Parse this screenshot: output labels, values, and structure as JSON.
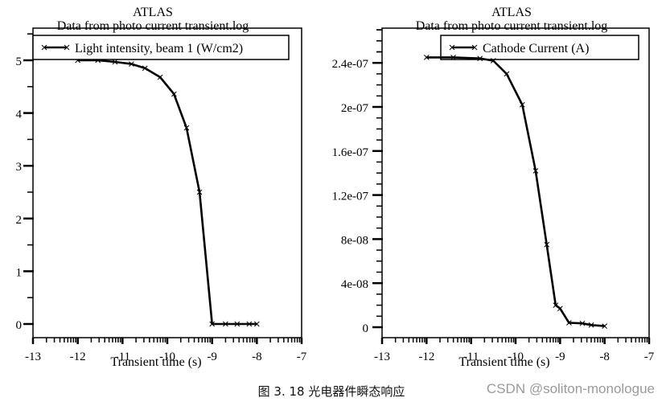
{
  "chart_data": [
    {
      "type": "line",
      "title": "ATLAS",
      "subtitle": "Data from photo current transient.log",
      "xlabel": "Transient time (s)",
      "ylabel": "",
      "xlim": [
        -13,
        -7
      ],
      "ylim": [
        -0.3,
        5.5
      ],
      "x_scale": "log10",
      "xticks": [
        "-13",
        "-12",
        "-11",
        "-10",
        "-9",
        "-8",
        "-7"
      ],
      "yticks": [
        "0",
        "1",
        "2",
        "3",
        "4",
        "5"
      ],
      "legend": [
        "Light intensity, beam 1 (W/cm2)"
      ],
      "legend_position": "top",
      "grid": false,
      "series": [
        {
          "name": "Light intensity, beam 1 (W/cm2)",
          "x": [
            -12.0,
            -11.55,
            -11.17,
            -10.8,
            -10.5,
            -10.16,
            -9.85,
            -9.57,
            -9.28,
            -9.0,
            -8.7,
            -8.44,
            -8.17,
            -8.0
          ],
          "values": [
            5.0,
            5.0,
            4.97,
            4.93,
            4.85,
            4.68,
            4.36,
            3.72,
            2.5,
            0.0,
            0.0,
            0.0,
            0.0,
            0.0
          ]
        }
      ]
    },
    {
      "type": "line",
      "title": "ATLAS",
      "subtitle": "Data from photo current transient.log",
      "xlabel": "Transient time (s)",
      "ylabel": "",
      "xlim": [
        -13,
        -7
      ],
      "ylim": [
        -1.2e-08,
        2.7e-07
      ],
      "x_scale": "log10",
      "xticks": [
        "-13",
        "-12",
        "-11",
        "-10",
        "-9",
        "-8",
        "-7"
      ],
      "yticks": [
        "0",
        "4e-08",
        "8e-08",
        "1.2e-07",
        "1.6e-07",
        "2e-07",
        "2.4e-07"
      ],
      "legend": [
        "Cathode Current (A)"
      ],
      "legend_position": "top",
      "grid": false,
      "series": [
        {
          "name": "Cathode Current (A)",
          "x": [
            -12.0,
            -11.4,
            -10.8,
            -10.5,
            -10.2,
            -9.85,
            -9.55,
            -9.3,
            -9.1,
            -9.0,
            -8.8,
            -8.5,
            -8.3,
            -8.0
          ],
          "values": [
            2.45e-07,
            2.45e-07,
            2.44e-07,
            2.42e-07,
            2.3e-07,
            2.02e-07,
            1.42e-07,
            7.5e-08,
            2e-08,
            1.7e-08,
            4e-09,
            3.5e-09,
            2e-09,
            1e-09
          ]
        }
      ]
    }
  ],
  "charts": {
    "left": {
      "title": "ATLAS",
      "subtitle": "Data from photo current transient.log",
      "legend": "Light intensity, beam 1 (W/cm2)",
      "xlabel": "Transient time (s)",
      "xticks": [
        "-13",
        "-12",
        "-11",
        "-10",
        "-9",
        "-8",
        "-7"
      ],
      "yticks": [
        "0",
        "1",
        "2",
        "3",
        "4",
        "5"
      ]
    },
    "right": {
      "title": "ATLAS",
      "subtitle": "Data from photo current transient.log",
      "legend": "Cathode Current (A)",
      "xlabel": "Transient time (s)",
      "xticks": [
        "-13",
        "-12",
        "-11",
        "-10",
        "-9",
        "-8",
        "-7"
      ],
      "yticks": [
        "0",
        "4e-08",
        "8e-08",
        "1.2e-07",
        "1.6e-07",
        "2e-07",
        "2.4e-07"
      ]
    }
  },
  "caption": "图 3. 18 光电器件瞬态响应",
  "watermark": "CSDN @soliton-monologue"
}
